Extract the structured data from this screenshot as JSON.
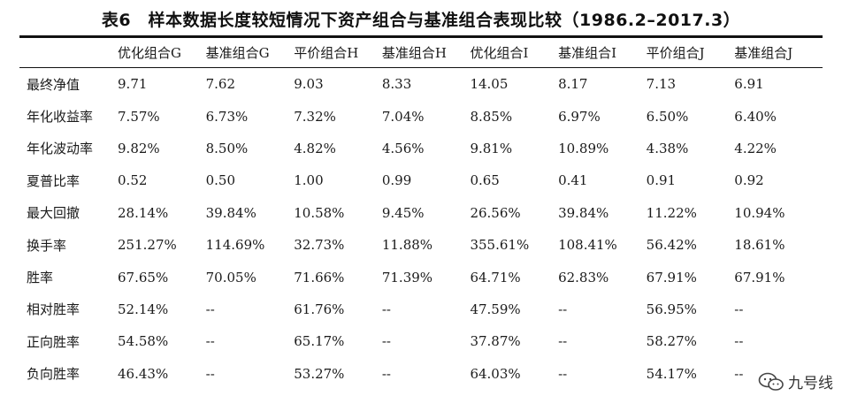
{
  "title": "表6　样本数据长度较短情况下资产组合与基准组合表现比较（1986.2–2017.3）",
  "columns": [
    "",
    "优化组合G",
    "基准组合G",
    "平价组合H",
    "基准组合H",
    "优化组合I",
    "基准组合I",
    "平价组合J",
    "基准组合J"
  ],
  "rows": [
    {
      "label": "最终净值",
      "values": [
        "9.71",
        "7.62",
        "9.03",
        "8.33",
        "14.05",
        "8.17",
        "7.13",
        "6.91"
      ]
    },
    {
      "label": "年化收益率",
      "values": [
        "7.57%",
        "6.73%",
        "7.32%",
        "7.04%",
        "8.85%",
        "6.97%",
        "6.50%",
        "6.40%"
      ]
    },
    {
      "label": "年化波动率",
      "values": [
        "9.82%",
        "8.50%",
        "4.82%",
        "4.56%",
        "9.81%",
        "10.89%",
        "4.38%",
        "4.22%"
      ]
    },
    {
      "label": "夏普比率",
      "values": [
        "0.52",
        "0.50",
        "1.00",
        "0.99",
        "0.65",
        "0.41",
        "0.91",
        "0.92"
      ]
    },
    {
      "label": "最大回撤",
      "values": [
        "28.14%",
        "39.84%",
        "10.58%",
        "9.45%",
        "26.56%",
        "39.84%",
        "11.22%",
        "10.94%"
      ]
    },
    {
      "label": "换手率",
      "values": [
        "251.27%",
        "114.69%",
        "32.73%",
        "11.88%",
        "355.61%",
        "108.41%",
        "56.42%",
        "18.61%"
      ]
    },
    {
      "label": "胜率",
      "values": [
        "67.65%",
        "70.05%",
        "71.66%",
        "71.39%",
        "64.71%",
        "62.83%",
        "67.91%",
        "67.91%"
      ]
    },
    {
      "label": "相对胜率",
      "values": [
        "52.14%",
        "--",
        "61.76%",
        "--",
        "47.59%",
        "--",
        "56.95%",
        "--"
      ]
    },
    {
      "label": "正向胜率",
      "values": [
        "54.58%",
        "--",
        "65.17%",
        "--",
        "37.87%",
        "--",
        "58.27%",
        "--"
      ]
    },
    {
      "label": "负向胜率",
      "values": [
        "46.43%",
        "--",
        "53.27%",
        "--",
        "64.03%",
        "--",
        "54.17%",
        "--"
      ]
    }
  ],
  "watermark": {
    "text": "九号线",
    "icon": "wechat-icon"
  }
}
